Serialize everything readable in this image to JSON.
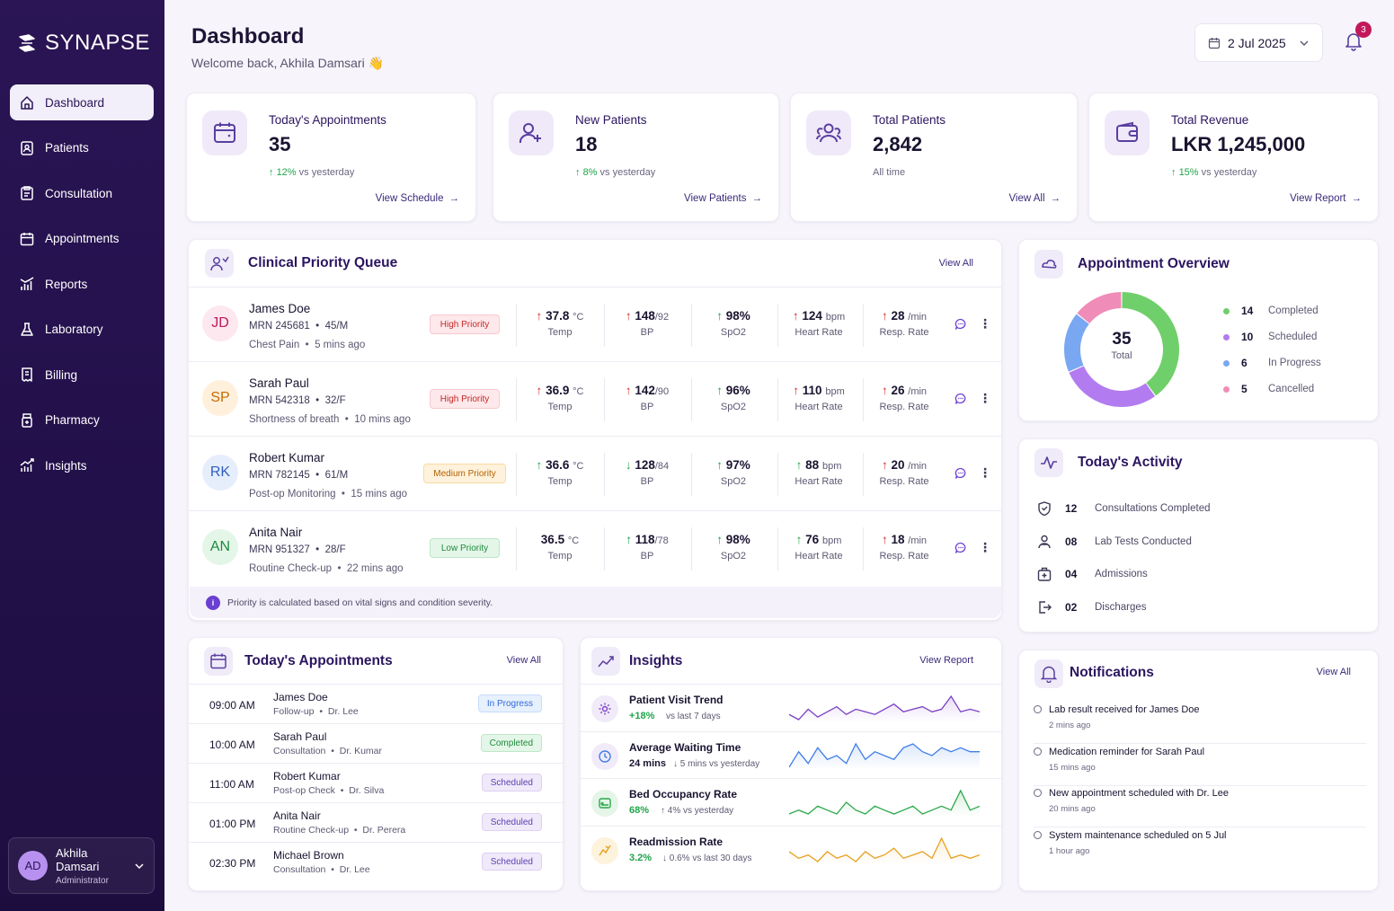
{
  "app": {
    "name": "SYNAPSE"
  },
  "sidebar": {
    "items": [
      {
        "label": "Dashboard",
        "icon": "home-icon",
        "active": true
      },
      {
        "label": "Patients",
        "icon": "patient-badge-icon"
      },
      {
        "label": "Consultation",
        "icon": "clipboard-icon"
      },
      {
        "label": "Appointments",
        "icon": "calendar-icon"
      },
      {
        "label": "Reports",
        "icon": "bar-chart-icon"
      },
      {
        "label": "Laboratory",
        "icon": "flask-icon"
      },
      {
        "label": "Billing",
        "icon": "receipt-icon"
      },
      {
        "label": "Pharmacy",
        "icon": "pill-bottle-icon"
      },
      {
        "label": "Insights",
        "icon": "trend-chart-icon"
      }
    ],
    "user": {
      "initials": "AD",
      "name": "Akhila Damsari",
      "role": "Administrator"
    }
  },
  "header": {
    "title": "Dashboard",
    "welcome": "Welcome back, Akhila Damsari 👋",
    "date": "2 Jul 2025",
    "notification_count": "3"
  },
  "stats": [
    {
      "label": "Today's Appointments",
      "value": "35",
      "change": "12%",
      "change_text": "vs yesterday",
      "link": "View Schedule",
      "icon": "calendar-icon"
    },
    {
      "label": "New Patients",
      "value": "18",
      "change": "8%",
      "change_text": "vs yesterday",
      "link": "View Patients",
      "icon": "user-plus-icon"
    },
    {
      "label": "Total Patients",
      "value": "2,842",
      "change": "",
      "change_text": "All time",
      "link": "View All",
      "icon": "users-icon"
    },
    {
      "label": "Total Revenue",
      "value": "LKR 1,245,000",
      "change": "15%",
      "change_text": "vs yesterday",
      "link": "View Report",
      "icon": "wallet-icon"
    }
  ],
  "queue": {
    "title": "Clinical Priority Queue",
    "view_all": "View All",
    "footer": "Priority is calculated based on vital signs and condition severity.",
    "patients": [
      {
        "initials": "JD",
        "name": "James Doe",
        "mrn": "MRN 245681",
        "demo": "45/M",
        "condition": "Chest Pain",
        "time": "5 mins ago",
        "priority": "High Priority",
        "level": "high",
        "temp": "37.8",
        "temp_u": "°C",
        "bp": "148",
        "bp2": "/92",
        "spo2": "98%",
        "hr": "124",
        "hr_u": "bpm",
        "rr": "28",
        "rr_u": "/min",
        "arrows": [
          "up-r",
          "up-r",
          "up-g",
          "up-r",
          "up-r"
        ]
      },
      {
        "initials": "SP",
        "name": "Sarah Paul",
        "mrn": "MRN 542318",
        "demo": "32/F",
        "condition": "Shortness of breath",
        "time": "10 mins ago",
        "priority": "High Priority",
        "level": "high",
        "temp": "36.9",
        "temp_u": "°C",
        "bp": "142",
        "bp2": "/90",
        "spo2": "96%",
        "hr": "110",
        "hr_u": "bpm",
        "rr": "26",
        "rr_u": "/min",
        "arrows": [
          "up-r",
          "up-r",
          "up-g",
          "up-r",
          "up-r"
        ]
      },
      {
        "initials": "RK",
        "name": "Robert Kumar",
        "mrn": "MRN 782145",
        "demo": "61/M",
        "condition": "Post-op Monitoring",
        "time": "15 mins ago",
        "priority": "Medium Priority",
        "level": "medium",
        "temp": "36.6",
        "temp_u": "°C",
        "bp": "128",
        "bp2": "/84",
        "spo2": "97%",
        "hr": "88",
        "hr_u": "bpm",
        "rr": "20",
        "rr_u": "/min",
        "arrows": [
          "up-g",
          "dn-g",
          "up-g",
          "up-g",
          "up-r"
        ]
      },
      {
        "initials": "AN",
        "name": "Anita Nair",
        "mrn": "MRN 951327",
        "demo": "28/F",
        "condition": "Routine Check-up",
        "time": "22 mins ago",
        "priority": "Low Priority",
        "level": "low",
        "temp": "36.5",
        "temp_u": "°C",
        "bp": "118",
        "bp2": "/78",
        "spo2": "98%",
        "hr": "76",
        "hr_u": "bpm",
        "rr": "18",
        "rr_u": "/min",
        "arrows": [
          "",
          "up-g",
          "up-g",
          "up-g",
          "up-r"
        ]
      }
    ],
    "vital_labels": {
      "temp": "Temp",
      "bp": "BP",
      "spo2": "SpO2",
      "hr": "Heart Rate",
      "rr": "Resp. Rate"
    }
  },
  "overview": {
    "title": "Appointment Overview",
    "total": "35",
    "total_label": "Total",
    "segments": [
      {
        "value": 14,
        "label": "Completed",
        "color": "#6fcf6a"
      },
      {
        "value": 10,
        "label": "Scheduled",
        "color": "#b27cf0"
      },
      {
        "value": 6,
        "label": "In Progress",
        "color": "#7aa7f2"
      },
      {
        "value": 5,
        "label": "Cancelled",
        "color": "#f08cb8"
      }
    ]
  },
  "activity": {
    "title": "Today's Activity",
    "items": [
      {
        "num": "12",
        "label": "Consultations Completed",
        "icon": "heart-shield-icon"
      },
      {
        "num": "08",
        "label": "Lab Tests Conducted",
        "icon": "lab-users-icon"
      },
      {
        "num": "04",
        "label": "Admissions",
        "icon": "hospital-bag-icon"
      },
      {
        "num": "02",
        "label": "Discharges",
        "icon": "exit-icon"
      }
    ]
  },
  "appointments": {
    "title": "Today's Appointments",
    "view_all": "View All",
    "rows": [
      {
        "time": "09:00 AM",
        "name": "James Doe",
        "type": "Follow-up",
        "doctor": "Dr. Lee",
        "status": "In Progress",
        "cls": "st-prog"
      },
      {
        "time": "10:00 AM",
        "name": "Sarah Paul",
        "type": "Consultation",
        "doctor": "Dr. Kumar",
        "status": "Completed",
        "cls": "st-done"
      },
      {
        "time": "11:00 AM",
        "name": "Robert Kumar",
        "type": "Post-op Check",
        "doctor": "Dr. Silva",
        "status": "Scheduled",
        "cls": "st-sched"
      },
      {
        "time": "01:00 PM",
        "name": "Anita Nair",
        "type": "Routine Check-up",
        "doctor": "Dr. Perera",
        "status": "Scheduled",
        "cls": "st-sched"
      },
      {
        "time": "02:30 PM",
        "name": "Michael Brown",
        "type": "Consultation",
        "doctor": "Dr. Lee",
        "status": "Scheduled",
        "cls": "st-sched"
      }
    ]
  },
  "insights": {
    "title": "Insights",
    "view_report": "View Report",
    "rows": [
      {
        "title": "Patient Visit Trend",
        "value": "+18%",
        "sub": "vs last 7 days",
        "value_color": "#1fa44a",
        "color": "#7b3fc4",
        "bg": "#f1ebf9",
        "icon": "gear-people-icon",
        "series": [
          12,
          10,
          14,
          11,
          13,
          15,
          12,
          14,
          13,
          12,
          14,
          16,
          13,
          14,
          15,
          13,
          14,
          19,
          13,
          14,
          13
        ]
      },
      {
        "title": "Average Waiting Time",
        "value": "24 mins",
        "sub": "↓ 5 mins vs yesterday",
        "value_color": "#1a1330",
        "color": "#3f7ee8",
        "bg": "#f1ebf9",
        "icon": "clock-icon",
        "series": [
          10,
          14,
          11,
          15,
          12,
          13,
          11,
          16,
          12,
          14,
          13,
          12,
          15,
          16,
          14,
          13,
          15,
          14,
          15,
          14,
          14
        ]
      },
      {
        "title": "Bed Occupancy Rate",
        "value": "68%",
        "sub": "↑ 4% vs yesterday",
        "value_color": "#1fa44a",
        "color": "#2ca84a",
        "bg": "#e5f5e8",
        "icon": "bed-icon",
        "series": [
          12,
          13,
          12,
          14,
          13,
          12,
          15,
          13,
          12,
          14,
          13,
          12,
          13,
          14,
          12,
          13,
          14,
          13,
          18,
          13,
          14
        ]
      },
      {
        "title": "Readmission Rate",
        "value": "3.2%",
        "sub": "↓ 0.6% vs last 30 days",
        "value_color": "#1fa44a",
        "color": "#e8a020",
        "bg": "#fdf2dc",
        "icon": "readmit-icon",
        "series": [
          14,
          12,
          13,
          11,
          14,
          12,
          13,
          11,
          14,
          12,
          13,
          15,
          12,
          13,
          14,
          12,
          18,
          12,
          13,
          12,
          13
        ]
      }
    ]
  },
  "notifications": {
    "title": "Notifications",
    "view_all": "View All",
    "items": [
      {
        "title": "Lab result received for James Doe",
        "time": "2 mins ago"
      },
      {
        "title": "Medication reminder for Sarah Paul",
        "time": "15 mins ago"
      },
      {
        "title": "New appointment scheduled with Dr. Lee",
        "time": "20 mins ago"
      },
      {
        "title": "System maintenance scheduled on 5 Jul",
        "time": "1 hour ago"
      }
    ]
  },
  "colors": {
    "brand": "#2b1555",
    "accent": "#6b3fd1"
  }
}
